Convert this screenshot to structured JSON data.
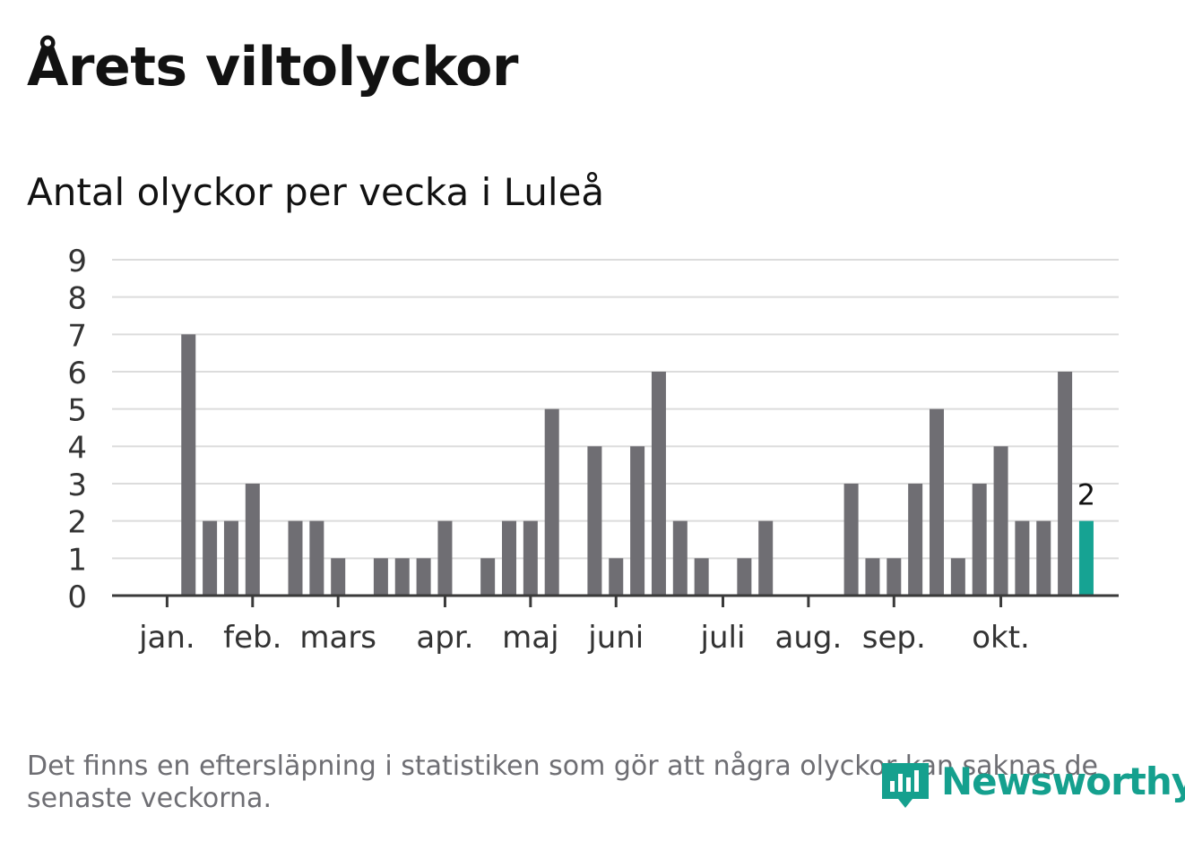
{
  "title": "Årets viltolyckor",
  "subtitle": "Antal olyckor per vecka i Luleå",
  "footnote": "Det finns en eftersläpning i statistiken som gör att några olyckor kan saknas de senaste veckorna.",
  "brand": "Newsworthy",
  "colors": {
    "bar": "#6f6e73",
    "highlight": "#16a393",
    "grid": "#dcdcdc",
    "axis": "#3a3a3a",
    "text": "#121212",
    "muted": "#6e6e73"
  },
  "chart_data": {
    "type": "bar",
    "title": "Antal olyckor per vecka i Luleå",
    "xlabel": "",
    "ylabel": "",
    "ylim": [
      0,
      9
    ],
    "yticks": [
      "0",
      "1",
      "2",
      "3",
      "4",
      "5",
      "6",
      "7",
      "8",
      "9"
    ],
    "week_start": 1,
    "values": [
      0,
      7,
      2,
      2,
      3,
      0,
      2,
      2,
      1,
      0,
      1,
      1,
      1,
      2,
      0,
      1,
      2,
      2,
      5,
      0,
      4,
      1,
      4,
      6,
      2,
      1,
      0,
      1,
      2,
      0,
      0,
      0,
      3,
      1,
      1,
      3,
      5,
      1,
      3,
      4,
      2,
      2,
      6,
      2
    ],
    "highlight_index": 43,
    "highlight_label": "2",
    "month_labels": [
      {
        "label": "jan.",
        "week": 1
      },
      {
        "label": "feb.",
        "week": 5
      },
      {
        "label": "mars",
        "week": 9
      },
      {
        "label": "apr.",
        "week": 14
      },
      {
        "label": "maj",
        "week": 18
      },
      {
        "label": "juni",
        "week": 22
      },
      {
        "label": "juli",
        "week": 27
      },
      {
        "label": "aug.",
        "week": 31
      },
      {
        "label": "sep.",
        "week": 35
      },
      {
        "label": "okt.",
        "week": 40
      }
    ]
  }
}
